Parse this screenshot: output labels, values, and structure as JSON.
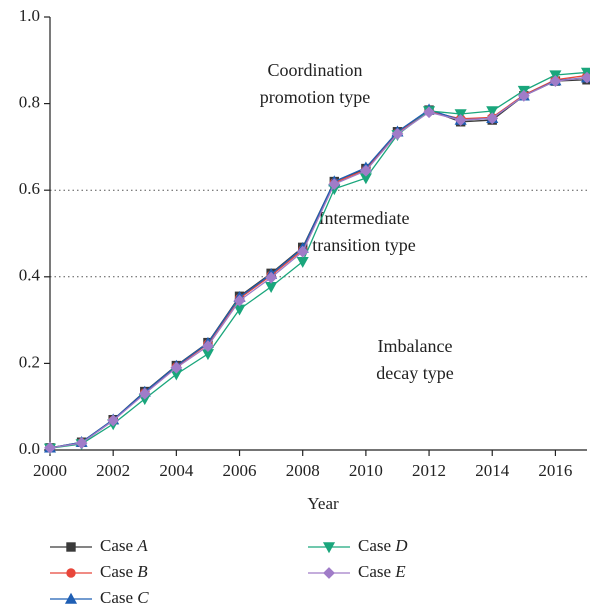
{
  "chart_data": {
    "type": "line",
    "x_label": "Year",
    "x": [
      2000,
      2001,
      2002,
      2003,
      2004,
      2005,
      2006,
      2007,
      2008,
      2009,
      2010,
      2011,
      2012,
      2013,
      2014,
      2015,
      2016,
      2017
    ],
    "xlim": [
      2000,
      2017
    ],
    "xticks": [
      2000,
      2002,
      2004,
      2006,
      2008,
      2010,
      2012,
      2014,
      2016
    ],
    "ylim": [
      0,
      1
    ],
    "yticks": [
      {
        "value": 0,
        "label": "0.0"
      },
      {
        "value": 0.2,
        "label": "0.2"
      },
      {
        "value": 0.4,
        "label": "0.4"
      },
      {
        "value": 0.6,
        "label": "0.6"
      },
      {
        "value": 0.8,
        "label": "0.8"
      },
      {
        "value": 1,
        "label": "1.0"
      }
    ],
    "hlines": [
      0.6,
      0.4
    ],
    "annotations": [
      [
        "Coordination",
        "promotion type"
      ],
      [
        "Intermediate",
        "transition type"
      ],
      [
        "Imbalance",
        "decay type"
      ]
    ],
    "series": [
      {
        "name": "Case A",
        "color": "#3a3a3a",
        "marker": "square",
        "values": [
          0.005,
          0.018,
          0.07,
          0.135,
          0.195,
          0.248,
          0.355,
          0.408,
          0.468,
          0.62,
          0.65,
          0.735,
          0.785,
          0.758,
          0.762,
          0.818,
          0.852,
          0.855
        ]
      },
      {
        "name": "Case B",
        "color": "#e8463a",
        "marker": "circle",
        "values": [
          0.005,
          0.017,
          0.068,
          0.132,
          0.192,
          0.245,
          0.35,
          0.403,
          0.462,
          0.617,
          0.647,
          0.732,
          0.782,
          0.765,
          0.768,
          0.82,
          0.855,
          0.865
        ]
      },
      {
        "name": "Case C",
        "color": "#1f5fb4",
        "marker": "triangle",
        "values": [
          0.005,
          0.018,
          0.07,
          0.134,
          0.194,
          0.247,
          0.353,
          0.406,
          0.466,
          0.62,
          0.652,
          0.735,
          0.786,
          0.762,
          0.766,
          0.818,
          0.853,
          0.86
        ]
      },
      {
        "name": "Case D",
        "color": "#1aa67c",
        "marker": "triangle-down",
        "values": [
          0.004,
          0.014,
          0.06,
          0.118,
          0.175,
          0.222,
          0.325,
          0.377,
          0.435,
          0.603,
          0.628,
          0.728,
          0.783,
          0.776,
          0.783,
          0.83,
          0.866,
          0.872
        ]
      },
      {
        "name": "Case E",
        "color": "#a07cc8",
        "marker": "diamond",
        "values": [
          0.005,
          0.016,
          0.068,
          0.13,
          0.19,
          0.24,
          0.345,
          0.398,
          0.458,
          0.614,
          0.645,
          0.73,
          0.78,
          0.762,
          0.766,
          0.818,
          0.852,
          0.86
        ]
      }
    ]
  }
}
